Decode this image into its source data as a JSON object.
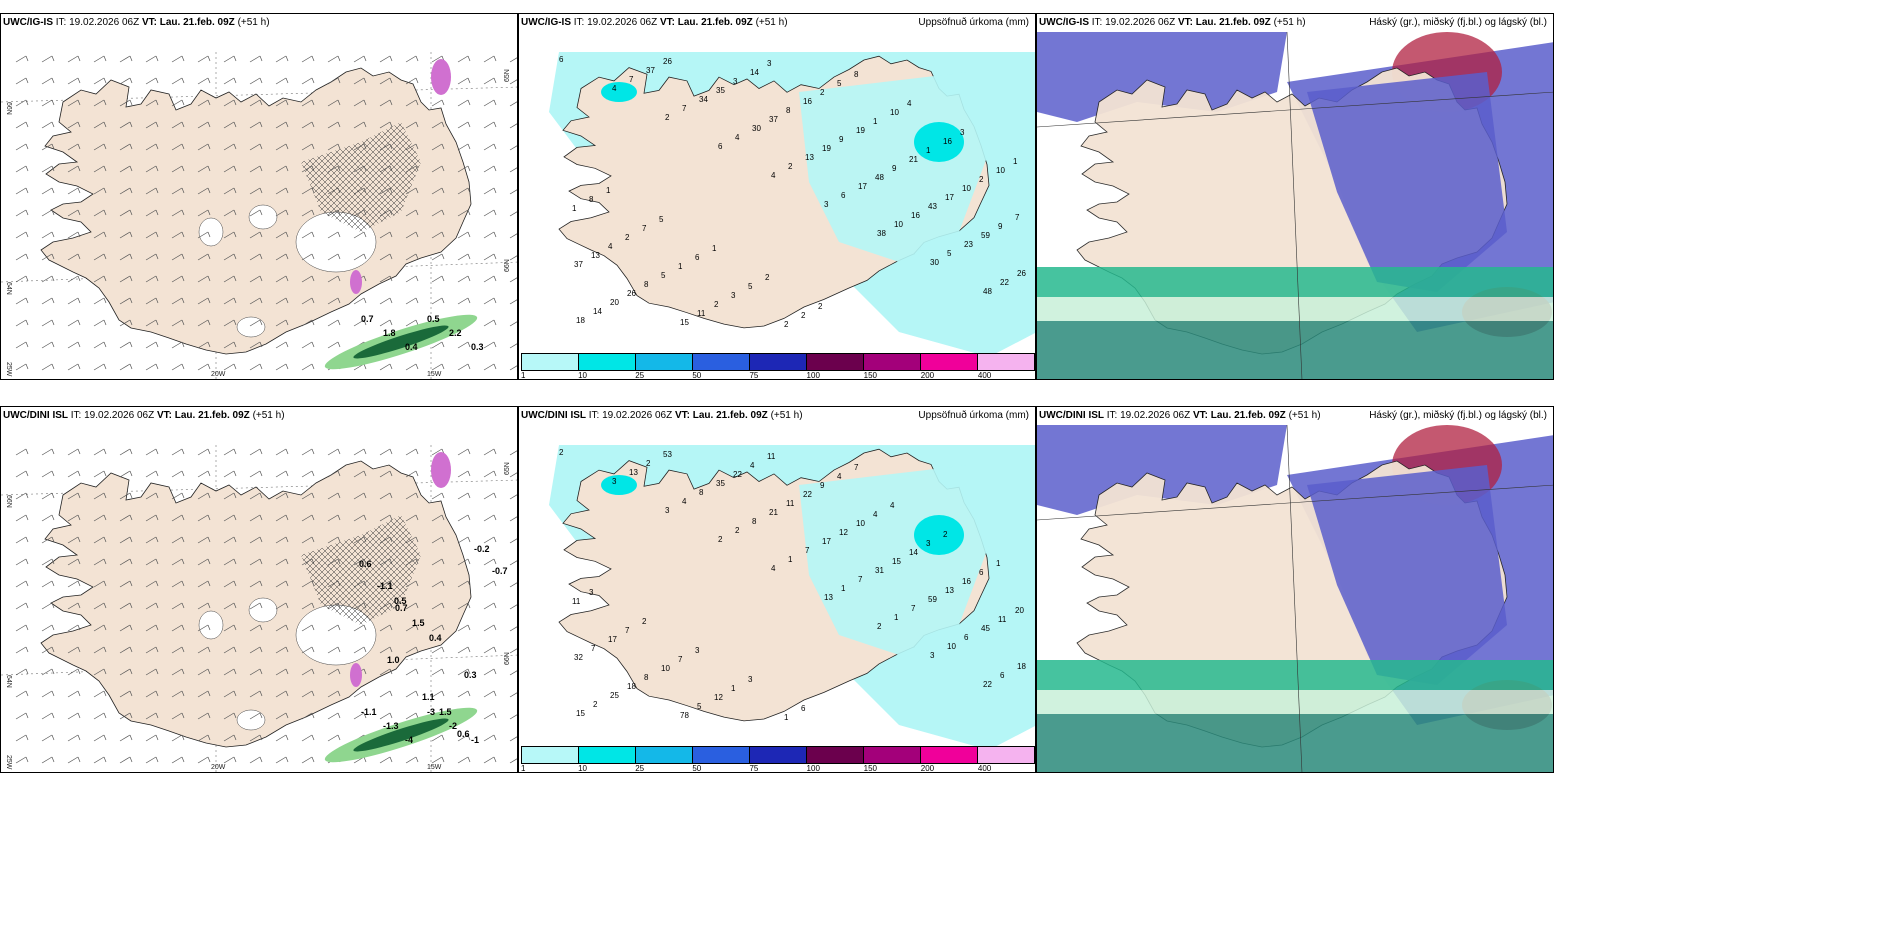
{
  "panels": [
    {
      "model": "UWC/IG-IS",
      "it_label": "IT:",
      "it": "19.02.2026 06Z",
      "vt_label": "VT:",
      "vt": "Lau. 21.feb. 09Z",
      "lead": "(+51 h)",
      "title": ""
    },
    {
      "model": "UWC/IG-IS",
      "it_label": "IT:",
      "it": "19.02.2026 06Z",
      "vt_label": "VT:",
      "vt": "Lau. 21.feb. 09Z",
      "lead": "(+51 h)",
      "title": "Uppsöfnuð úrkoma (mm)"
    },
    {
      "model": "UWC/IG-IS",
      "it_label": "IT:",
      "it": "19.02.2026 06Z",
      "vt_label": "VT:",
      "vt": "Lau. 21.feb. 09Z",
      "lead": "(+51 h)",
      "title": "Háský (gr.), miðský (fj.bl.) og lágský (bl.)"
    },
    {
      "model": "UWC/DINI ISL",
      "it_label": "IT:",
      "it": "19.02.2026 06Z",
      "vt_label": "VT:",
      "vt": "Lau. 21.feb. 09Z",
      "lead": "(+51 h)",
      "title": ""
    },
    {
      "model": "UWC/DINI ISL",
      "it_label": "IT:",
      "it": "19.02.2026 06Z",
      "vt_label": "VT:",
      "vt": "Lau. 21.feb. 09Z",
      "lead": "(+51 h)",
      "title": "Uppsöfnuð úrkoma (mm)"
    },
    {
      "model": "UWC/DINI ISL",
      "it_label": "IT:",
      "it": "19.02.2026 06Z",
      "vt_label": "VT:",
      "vt": "Lau. 21.feb. 09Z",
      "lead": "(+51 h)",
      "title": "Háský (gr.), miðský (fj.bl.) og lágský (bl.)"
    }
  ],
  "axis_labels": {
    "lat_top": "66N",
    "lat_mid": "64N",
    "lat_bottom": "25W",
    "lon_left": "20W",
    "lon_right": "15W",
    "lat_right_top": "65N",
    "lat_right_mid": "66N"
  },
  "colorbar": {
    "labels": [
      "1",
      "10",
      "25",
      "50",
      "75",
      "100",
      "150",
      "200",
      "400"
    ],
    "colors": [
      "#b7f8f8",
      "#00e6e6",
      "#14b8e8",
      "#2a5fe0",
      "#1d27b5",
      "#6b004d",
      "#a3007a",
      "#f0009a",
      "#f5b3ef"
    ]
  },
  "colors": {
    "land": "#f3e3d4",
    "sea_precip": "#b5f6f6",
    "high_cloud": "#5a5ecb",
    "mid_cloud": "#b02040",
    "low_cloud": "#2faa8a"
  },
  "precip_values_top": [
    "6",
    "4",
    "2",
    "6",
    "4",
    "3",
    "38",
    "30",
    "48",
    "18",
    "7",
    "7",
    "4",
    "2",
    "6",
    "10",
    "5",
    "22",
    "14",
    "37",
    "34",
    "30",
    "13",
    "17",
    "16",
    "23",
    "26",
    "20",
    "26",
    "35",
    "37",
    "19",
    "48",
    "43",
    "59",
    "37",
    "26",
    "15",
    "3",
    "8",
    "9",
    "9",
    "17",
    "9",
    "13",
    "8",
    "11",
    "14",
    "16",
    "19",
    "21",
    "10",
    "7",
    "4",
    "5",
    "2",
    "3",
    "2",
    "1",
    "1",
    "2",
    "1",
    "2",
    "1",
    "3",
    "2",
    "5",
    "10",
    "16",
    "10",
    "8",
    "7",
    "6",
    "5",
    "2",
    "8",
    "4",
    "3",
    "1",
    "1",
    "5",
    "1",
    "2",
    "2"
  ],
  "precip_values_bottom": [
    "2",
    "3",
    "3",
    "2",
    "4",
    "13",
    "2",
    "3",
    "22",
    "15",
    "13",
    "4",
    "2",
    "1",
    "1",
    "1",
    "10",
    "6",
    "2",
    "2",
    "8",
    "8",
    "7",
    "7",
    "7",
    "6",
    "18",
    "25",
    "53",
    "35",
    "21",
    "17",
    "31",
    "59",
    "45",
    "32",
    "18",
    "78",
    "22",
    "11",
    "12",
    "15",
    "13",
    "11",
    "7",
    "8",
    "5",
    "4",
    "22",
    "10",
    "14",
    "16",
    "20",
    "17",
    "10",
    "12",
    "11",
    "9",
    "4",
    "3",
    "6",
    "11",
    "7",
    "7",
    "1",
    "1",
    "4",
    "4",
    "2",
    "1",
    "3",
    "2",
    "3",
    "3",
    "6",
    "7"
  ],
  "temp_values_top": [
    "0.7",
    "1.8",
    "0.4",
    "0.5",
    "2.2",
    "0.3"
  ],
  "temp_values_bottom": [
    "-1.1",
    "-1.3",
    "-4",
    "-3",
    "-2",
    "-1",
    "0.6",
    "0.5",
    "0.4",
    "0.3",
    "1.5",
    "-0.2",
    "-1.1",
    "1.5",
    "1.0",
    "1.1",
    "0.6",
    "-0.7",
    "0.7"
  ]
}
